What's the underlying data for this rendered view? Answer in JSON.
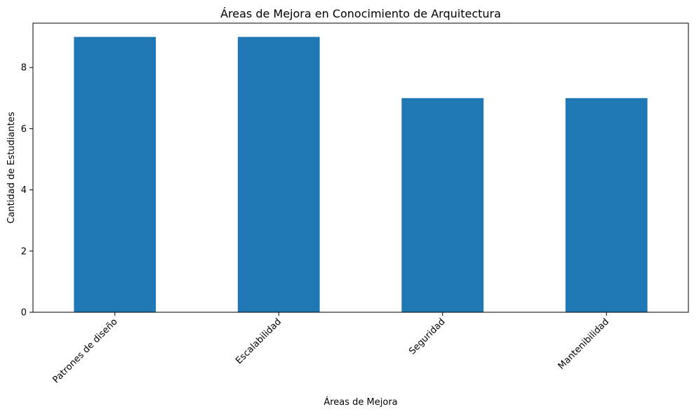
{
  "chart_data": {
    "type": "bar",
    "title": "Áreas de Mejora en Conocimiento de Arquitectura",
    "xlabel": "Áreas de Mejora",
    "ylabel": "Cantidad de Estudiantes",
    "categories": [
      "Patrones de diseño",
      "Escalabilidad",
      "Seguridad",
      "Mantenibilidad"
    ],
    "values": [
      9,
      9,
      7,
      7
    ],
    "ylim": [
      0,
      9.45
    ],
    "yticks": [
      0,
      2,
      4,
      6,
      8
    ],
    "bar_color": "#1f77b4",
    "grid": false,
    "legend": "none"
  }
}
